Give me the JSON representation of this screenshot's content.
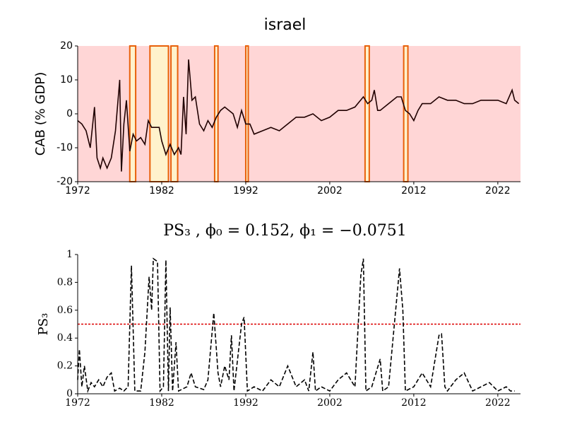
{
  "chart_data": [
    {
      "type": "line",
      "title": "israel",
      "y_label": "CAB (% GDP)",
      "xlim": [
        1972,
        2024.7
      ],
      "xticks": [
        1972,
        1982,
        1992,
        2002,
        2012,
        2022
      ],
      "ylim": [
        -20,
        20
      ],
      "yticks": [
        -20,
        -10,
        0,
        10,
        20
      ],
      "background_color": "#ffd6d6",
      "shade_color": "#fff2cc",
      "shade_edge_color": "#e8600a",
      "regimes": [
        [
          1978.2,
          1978.9
        ],
        [
          1980.6,
          1982.8
        ],
        [
          1983.1,
          1983.9
        ],
        [
          1988.3,
          1988.7
        ],
        [
          1992.0,
          1992.3
        ],
        [
          2006.2,
          2006.7
        ],
        [
          2010.8,
          2011.3
        ]
      ],
      "series": [
        {
          "color": "#200000",
          "x": [
            1972,
            1972.5,
            1973,
            1973.5,
            1974,
            1974.3,
            1974.7,
            1975,
            1975.5,
            1976,
            1976.5,
            1977,
            1977.2,
            1977.5,
            1977.8,
            1978.2,
            1978.6,
            1979,
            1979.5,
            1980,
            1980.4,
            1980.8,
            1981.3,
            1981.7,
            1982,
            1982.5,
            1983,
            1983.5,
            1984,
            1984.3,
            1984.6,
            1984.9,
            1985.2,
            1985.6,
            1986,
            1986.5,
            1987,
            1987.5,
            1988,
            1988.5,
            1989,
            1989.5,
            1990,
            1990.5,
            1991,
            1991.5,
            1992,
            1992.5,
            1993,
            1994,
            1995,
            1996,
            1997,
            1998,
            1999,
            2000,
            2001,
            2002,
            2003,
            2004,
            2005,
            2006,
            2006.5,
            2007,
            2007.3,
            2007.7,
            2008,
            2009,
            2010,
            2010.5,
            2011,
            2011.5,
            2012,
            2012.5,
            2013,
            2014,
            2015,
            2016,
            2017,
            2018,
            2019,
            2020,
            2021,
            2022,
            2023,
            2023.7,
            2024,
            2024.5
          ],
          "values": [
            -2,
            -3,
            -5,
            -10,
            2,
            -13,
            -16,
            -13,
            -16,
            -13,
            -5,
            10,
            -17,
            -3,
            4,
            -11,
            -6,
            -8,
            -7,
            -9,
            -2,
            -4,
            -4,
            -4,
            -8,
            -12,
            -9,
            -12,
            -10,
            -12,
            5,
            -6,
            16,
            4,
            5,
            -3,
            -5,
            -2,
            -4,
            -1,
            1,
            2,
            1,
            0,
            -4,
            1,
            -3,
            -3,
            -6,
            -5,
            -4,
            -5,
            -3,
            -1,
            -1,
            0,
            -2,
            -1,
            1,
            1,
            2,
            5,
            3,
            4,
            7,
            1,
            1,
            3,
            5,
            5,
            1,
            0,
            -2,
            1,
            3,
            3,
            5,
            4,
            4,
            3,
            3,
            4,
            4,
            4,
            3,
            7,
            4,
            3
          ]
        }
      ]
    },
    {
      "type": "line",
      "title": "PS₃ , ϕ₀ = 0.152, ϕ₁ = −0.0751",
      "y_label": "PS₃",
      "xlim": [
        1972,
        2024.7
      ],
      "xticks": [
        1972,
        1982,
        1992,
        2002,
        2012,
        2022
      ],
      "ylim": [
        0,
        1
      ],
      "yticks": [
        0,
        0.2,
        0.4,
        0.6,
        0.8,
        1
      ],
      "threshold": 0.5,
      "threshold_color": "#dd0000",
      "series": [
        {
          "color": "#000000",
          "dashed": true,
          "x": [
            1972,
            1972.2,
            1972.5,
            1972.8,
            1973.2,
            1973.6,
            1974,
            1974.5,
            1975,
            1975.5,
            1976,
            1976.4,
            1977,
            1977.5,
            1978,
            1978.4,
            1978.8,
            1979.5,
            1980,
            1980.5,
            1980.8,
            1981,
            1981.5,
            1981.8,
            1982.2,
            1982.5,
            1982.8,
            1983,
            1983.3,
            1983.7,
            1984,
            1985,
            1985.5,
            1986,
            1987,
            1987.5,
            1988.2,
            1988.7,
            1989,
            1989.5,
            1990,
            1990.3,
            1990.6,
            1991.5,
            1991.8,
            1992.2,
            1993,
            1994,
            1995,
            1996,
            1997,
            1998,
            1999,
            1999.5,
            2000,
            2000.3,
            2001,
            2002,
            2003,
            2004,
            2005,
            2005.7,
            2006,
            2006.3,
            2007,
            2008,
            2008.3,
            2009,
            2010.3,
            2010.7,
            2011,
            2012,
            2013,
            2014,
            2015,
            2015.3,
            2015.7,
            2016,
            2017,
            2018,
            2019,
            2020,
            2021,
            2022,
            2023,
            2023.5,
            2024
          ],
          "values": [
            0.1,
            0.32,
            0.05,
            0.2,
            0.02,
            0.08,
            0.05,
            0.1,
            0.05,
            0.12,
            0.15,
            0.02,
            0.04,
            0.02,
            0.05,
            0.92,
            0.02,
            0.02,
            0.3,
            0.84,
            0.6,
            0.97,
            0.95,
            0.02,
            0.05,
            0.96,
            0.02,
            0.62,
            0.02,
            0.37,
            0.02,
            0.05,
            0.15,
            0.05,
            0.03,
            0.1,
            0.58,
            0.15,
            0.05,
            0.2,
            0.1,
            0.42,
            0.02,
            0.5,
            0.55,
            0.02,
            0.05,
            0.02,
            0.1,
            0.05,
            0.2,
            0.05,
            0.1,
            0.02,
            0.3,
            0.02,
            0.05,
            0.02,
            0.1,
            0.15,
            0.05,
            0.85,
            0.97,
            0.02,
            0.05,
            0.25,
            0.02,
            0.05,
            0.9,
            0.6,
            0.02,
            0.05,
            0.15,
            0.05,
            0.42,
            0.43,
            0.05,
            0.02,
            0.1,
            0.15,
            0.02,
            0.05,
            0.08,
            0.02,
            0.05,
            0.02,
            0.02
          ]
        }
      ]
    }
  ]
}
